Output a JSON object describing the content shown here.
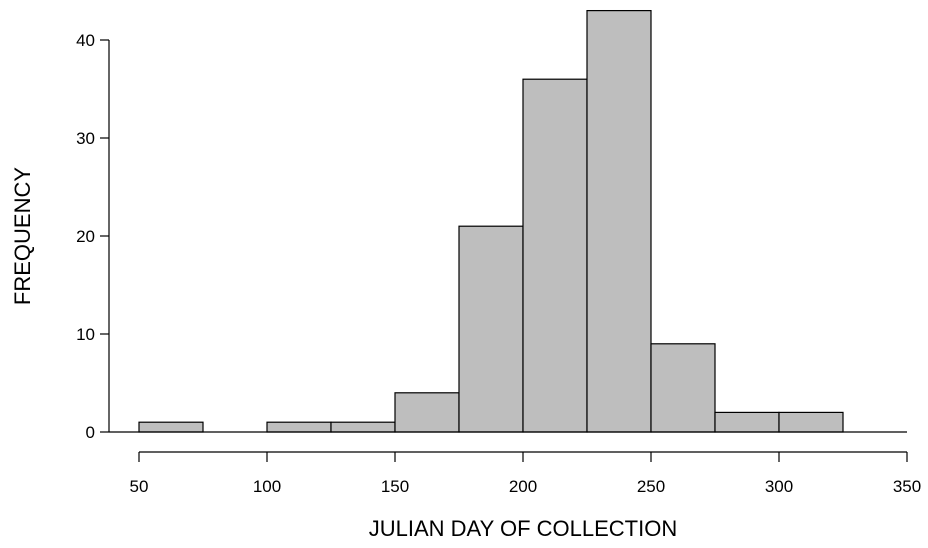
{
  "chart_data": {
    "type": "bar",
    "bin_edges": [
      50,
      75,
      100,
      125,
      150,
      175,
      200,
      225,
      250,
      275,
      300,
      325
    ],
    "values": [
      1,
      0,
      1,
      1,
      4,
      21,
      36,
      43,
      9,
      2,
      2
    ],
    "xlabel": "JULIAN DAY OF COLLECTION",
    "ylabel": "FREQUENCY",
    "xlim": [
      50,
      350
    ],
    "ylim": [
      0,
      43
    ],
    "x_ticks": [
      50,
      100,
      150,
      200,
      250,
      300,
      350
    ],
    "y_ticks": [
      0,
      10,
      20,
      30,
      40
    ],
    "bar_color": "#bebebe",
    "grid": false
  }
}
